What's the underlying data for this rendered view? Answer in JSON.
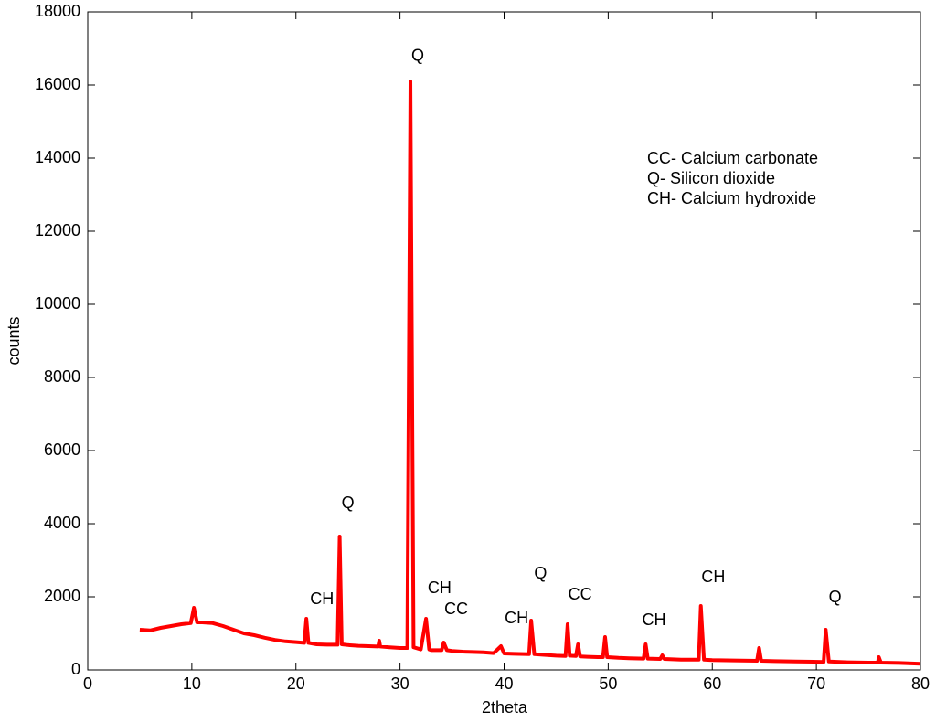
{
  "chart_data": {
    "type": "line",
    "xlabel": "2theta",
    "ylabel": "counts",
    "x": [
      5,
      6,
      7,
      8,
      9,
      9.9,
      10.2,
      10.5,
      11,
      12,
      13,
      14,
      15,
      16,
      17,
      18,
      19,
      20,
      20.8,
      21.0,
      21.2,
      22,
      23,
      24.0,
      24.2,
      24.4,
      25,
      26,
      27,
      27.9,
      28.0,
      28.1,
      29,
      30,
      30.7,
      31.0,
      31.3,
      32,
      32.5,
      32.8,
      33,
      34,
      34.2,
      34.5,
      35,
      36,
      37,
      38,
      39,
      39.7,
      40,
      41,
      42.4,
      42.6,
      42.9,
      44,
      45,
      45.9,
      46.1,
      46.3,
      46.9,
      47.1,
      47.3,
      48,
      49,
      49.5,
      49.7,
      49.9,
      51,
      52,
      53.4,
      53.6,
      53.8,
      55,
      55.2,
      55.4,
      57,
      58.7,
      58.9,
      59.2,
      60,
      62,
      64.3,
      64.5,
      64.7,
      66,
      68,
      70.7,
      70.9,
      71.2,
      73,
      75,
      75.9,
      76,
      76.2,
      78,
      80
    ],
    "values": [
      1100,
      1080,
      1150,
      1200,
      1250,
      1280,
      1700,
      1300,
      1300,
      1280,
      1200,
      1100,
      1000,
      950,
      880,
      820,
      780,
      760,
      740,
      1400,
      740,
      700,
      690,
      690,
      3650,
      700,
      680,
      660,
      650,
      640,
      800,
      640,
      620,
      600,
      600,
      16100,
      620,
      560,
      1400,
      560,
      540,
      540,
      750,
      540,
      520,
      500,
      490,
      480,
      460,
      650,
      450,
      440,
      430,
      1350,
      430,
      410,
      390,
      380,
      1250,
      390,
      380,
      700,
      370,
      360,
      350,
      350,
      900,
      350,
      330,
      320,
      310,
      700,
      310,
      300,
      400,
      300,
      280,
      280,
      1750,
      280,
      270,
      260,
      250,
      600,
      250,
      240,
      230,
      220,
      1100,
      230,
      210,
      200,
      200,
      350,
      200,
      190,
      170
    ],
    "color": "#ff0000",
    "xlim": [
      0,
      80
    ],
    "xticks": [
      0,
      10,
      20,
      30,
      40,
      50,
      60,
      70,
      80
    ],
    "ylim": [
      0,
      18000
    ],
    "yticks": [
      0,
      2000,
      4000,
      6000,
      8000,
      10000,
      12000,
      14000,
      16000,
      18000
    ],
    "grid": false,
    "annotations": [
      {
        "text": "Q",
        "x": 31.7,
        "y": 16780
      },
      {
        "text": "Q",
        "x": 25.0,
        "y": 4550
      },
      {
        "text": "CH",
        "x": 22.5,
        "y": 1925
      },
      {
        "text": "CH",
        "x": 33.8,
        "y": 2225
      },
      {
        "text": "CC",
        "x": 35.4,
        "y": 1650
      },
      {
        "text": "CH",
        "x": 41.2,
        "y": 1400
      },
      {
        "text": "Q",
        "x": 43.5,
        "y": 2625
      },
      {
        "text": "CC",
        "x": 47.3,
        "y": 2050
      },
      {
        "text": "CH",
        "x": 54.4,
        "y": 1350
      },
      {
        "text": "CH",
        "x": 60.1,
        "y": 2525
      },
      {
        "text": "Q",
        "x": 71.8,
        "y": 1975
      }
    ],
    "notes": [
      "CC- Calcium carbonate",
      "Q- Silicon dioxide",
      "CH- Calcium hydroxide"
    ]
  }
}
